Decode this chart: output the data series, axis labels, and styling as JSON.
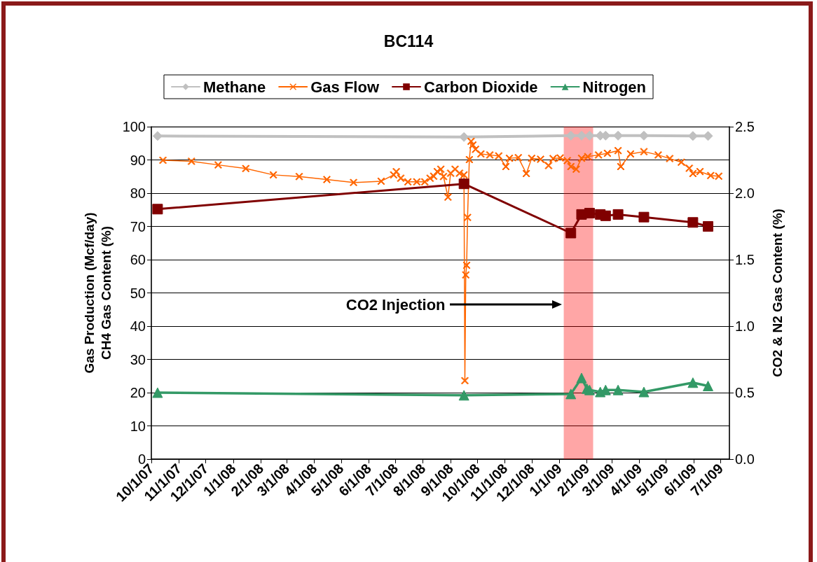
{
  "chart_data": {
    "type": "line",
    "title": "BC114",
    "ylabel": "Gas Production (Mcf/day)\nCH4 Gas Content (%)",
    "y2label": "CO2 & N2 Gas Content (%)",
    "xlim": [
      "2007-10-01",
      "2009-07-11"
    ],
    "xticks": [
      {
        "value": "2007-10-01",
        "label": "10/1/07"
      },
      {
        "value": "2007-11-01",
        "label": "11/1/07"
      },
      {
        "value": "2007-12-01",
        "label": "12/1/07"
      },
      {
        "value": "2008-01-01",
        "label": "1/1/08"
      },
      {
        "value": "2008-02-01",
        "label": "2/1/08"
      },
      {
        "value": "2008-03-01",
        "label": "3/1/08"
      },
      {
        "value": "2008-04-01",
        "label": "4/1/08"
      },
      {
        "value": "2008-05-01",
        "label": "5/1/08"
      },
      {
        "value": "2008-06-01",
        "label": "6/1/08"
      },
      {
        "value": "2008-07-01",
        "label": "7/1/08"
      },
      {
        "value": "2008-08-01",
        "label": "8/1/08"
      },
      {
        "value": "2008-09-01",
        "label": "9/1/08"
      },
      {
        "value": "2008-10-01",
        "label": "10/1/08"
      },
      {
        "value": "2008-11-01",
        "label": "11/1/08"
      },
      {
        "value": "2008-12-01",
        "label": "12/1/08"
      },
      {
        "value": "2009-01-01",
        "label": "1/1/09"
      },
      {
        "value": "2009-02-01",
        "label": "2/1/09"
      },
      {
        "value": "2009-03-01",
        "label": "3/1/09"
      },
      {
        "value": "2009-04-01",
        "label": "4/1/09"
      },
      {
        "value": "2009-05-01",
        "label": "5/1/09"
      },
      {
        "value": "2009-06-01",
        "label": "6/1/09"
      },
      {
        "value": "2009-07-01",
        "label": "7/1/09"
      }
    ],
    "ylim": [
      0,
      100
    ],
    "yticks": [
      0,
      10,
      20,
      30,
      40,
      50,
      60,
      70,
      80,
      90,
      100
    ],
    "y2lim": [
      0,
      2.5
    ],
    "y2ticks": [
      {
        "value": 0,
        "label": "0.0"
      },
      0.5,
      {
        "value": 1,
        "label": "1.0"
      },
      1.5,
      {
        "value": 2,
        "label": "2.0"
      },
      2.5
    ],
    "grid": "y",
    "legend": "top",
    "bands": [
      {
        "axis": "x",
        "from": "2009-01-06",
        "to": "2009-02-08",
        "color": "#ff0000"
      }
    ],
    "annotations": [
      "CO2 Injection"
    ],
    "series": [
      {
        "name": "Methane",
        "color": "#c0c0c0",
        "marker": "diamond",
        "x": [
          "2007-10-08",
          "2008-09-16",
          "2009-01-14",
          "2009-01-26",
          "2009-02-04",
          "2009-02-16",
          "2009-02-22",
          "2009-03-08",
          "2009-04-06",
          "2009-05-31",
          "2009-06-17"
        ],
        "values": [
          97.2,
          96.9,
          97.3,
          97.3,
          97.3,
          97.3,
          97.3,
          97.3,
          97.3,
          97.2,
          97.2
        ]
      },
      {
        "name": "Gas Flow",
        "color": "#ff6600",
        "marker": "cross",
        "x": [
          "2007-10-14",
          "2007-11-15",
          "2007-12-15",
          "2008-01-15",
          "2008-02-15",
          "2008-03-15",
          "2008-04-15",
          "2008-05-15",
          "2008-06-15",
          "2008-06-29",
          "2008-07-02",
          "2008-07-07",
          "2008-07-15",
          "2008-07-25",
          "2008-08-03",
          "2008-08-09",
          "2008-08-13",
          "2008-08-17",
          "2008-08-21",
          "2008-08-24",
          "2008-08-29",
          "2008-09-01",
          "2008-09-06",
          "2008-09-11",
          "2008-09-16",
          "2008-09-17",
          "2008-09-18",
          "2008-09-19",
          "2008-09-20",
          "2008-09-22",
          "2008-09-24",
          "2008-09-26",
          "2008-09-29",
          "2008-10-05",
          "2008-10-15",
          "2008-10-25",
          "2008-11-02",
          "2008-11-06",
          "2008-11-16",
          "2008-11-25",
          "2008-12-01",
          "2008-12-11",
          "2008-12-20",
          "2008-12-25",
          "2009-01-02",
          "2009-01-10",
          "2009-01-14",
          "2009-01-20",
          "2009-01-26",
          "2009-02-02",
          "2009-02-14",
          "2009-02-24",
          "2009-03-08",
          "2009-03-11",
          "2009-03-22",
          "2009-04-06",
          "2009-04-22",
          "2009-05-05",
          "2009-05-18",
          "2009-05-27",
          "2009-05-31",
          "2009-06-08",
          "2009-06-20",
          "2009-06-29"
        ],
        "values": [
          89.9,
          89.6,
          88.5,
          87.4,
          85.5,
          85.0,
          84.1,
          83.2,
          83.6,
          85.5,
          86.5,
          84.5,
          83.4,
          83.4,
          83.4,
          84.5,
          85.1,
          86.5,
          87.2,
          85.0,
          78.8,
          86.0,
          87.2,
          86.0,
          85.5,
          23.6,
          55.4,
          58.3,
          72.7,
          90.1,
          95.6,
          94.5,
          93.2,
          91.8,
          91.5,
          91.2,
          88.0,
          90.5,
          90.7,
          85.9,
          90.5,
          90.2,
          88.3,
          90.4,
          90.6,
          89.8,
          88.0,
          87.2,
          90.5,
          91.0,
          91.5,
          92.0,
          92.8,
          88.0,
          91.8,
          92.5,
          91.5,
          90.4,
          89.3,
          87.5,
          85.9,
          86.5,
          85.3,
          85.1
        ]
      },
      {
        "name": "Carbon Dioxide",
        "color": "#800000",
        "marker": "square",
        "axis": "y2",
        "x": [
          "2007-10-08",
          "2008-09-16",
          "2009-01-14",
          "2009-01-26",
          "2009-02-04",
          "2009-02-16",
          "2009-02-22",
          "2009-03-08",
          "2009-04-06",
          "2009-05-31",
          "2009-06-17"
        ],
        "values": [
          1.88,
          2.07,
          1.7,
          1.84,
          1.85,
          1.84,
          1.83,
          1.84,
          1.82,
          1.78,
          1.75
        ]
      },
      {
        "name": "Nitrogen",
        "color": "#339966",
        "marker": "triangle",
        "axis": "y2",
        "x": [
          "2007-10-08",
          "2008-09-16",
          "2009-01-14",
          "2009-01-26",
          "2009-02-01",
          "2009-02-04",
          "2009-02-16",
          "2009-02-22",
          "2009-03-08",
          "2009-04-06",
          "2009-05-31",
          "2009-06-17"
        ],
        "values": [
          0.5,
          0.48,
          0.49,
          0.61,
          0.53,
          0.52,
          0.505,
          0.52,
          0.52,
          0.505,
          0.575,
          0.55
        ]
      }
    ]
  }
}
